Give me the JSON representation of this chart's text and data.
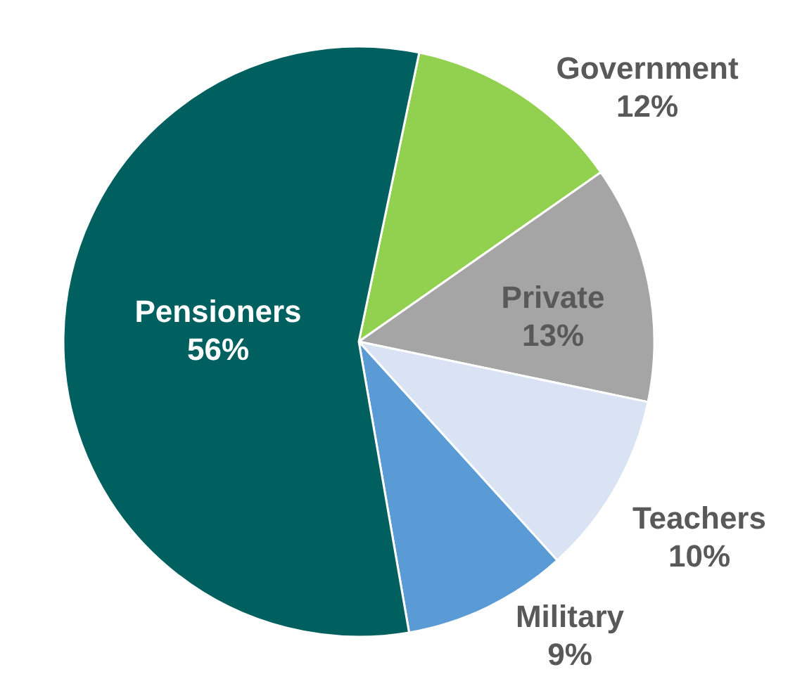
{
  "chart_data": {
    "type": "pie",
    "categories": [
      "Government",
      "Private",
      "Teachers",
      "Military",
      "Pensioners"
    ],
    "values": [
      12,
      13,
      10,
      9,
      56
    ],
    "value_labels": [
      "12%",
      "13%",
      "10%",
      "9%",
      "56%"
    ],
    "colors": [
      "#92d050",
      "#a5a5a5",
      "#dae3f3",
      "#5b9bd5",
      "#00605f"
    ],
    "legend": false
  }
}
